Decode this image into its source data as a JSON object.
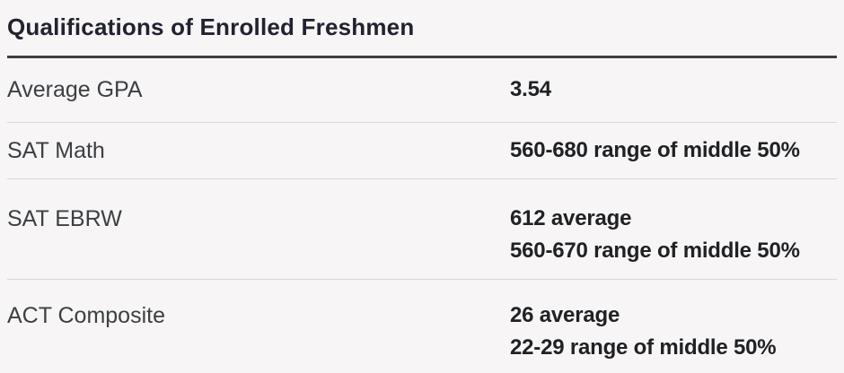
{
  "header": {
    "title": "Qualifications of Enrolled Freshmen"
  },
  "table": {
    "rows": [
      {
        "label": "Average GPA",
        "values": [
          "3.54"
        ]
      },
      {
        "label": "SAT Math",
        "values": [
          "560-680 range of middle 50%"
        ]
      },
      {
        "label": "SAT EBRW",
        "values": [
          "612 average",
          "560-670 range of middle 50%"
        ]
      },
      {
        "label": "ACT Composite",
        "values": [
          "26 average",
          "22-29 range of middle 50%"
        ]
      }
    ]
  },
  "colors": {
    "page_background": "#f7f5f6",
    "title_text": "#222230",
    "header_rule": "#3e3e42",
    "row_divider": "#d8d7d8",
    "label_text": "#3c4043",
    "value_text": "#202124"
  }
}
